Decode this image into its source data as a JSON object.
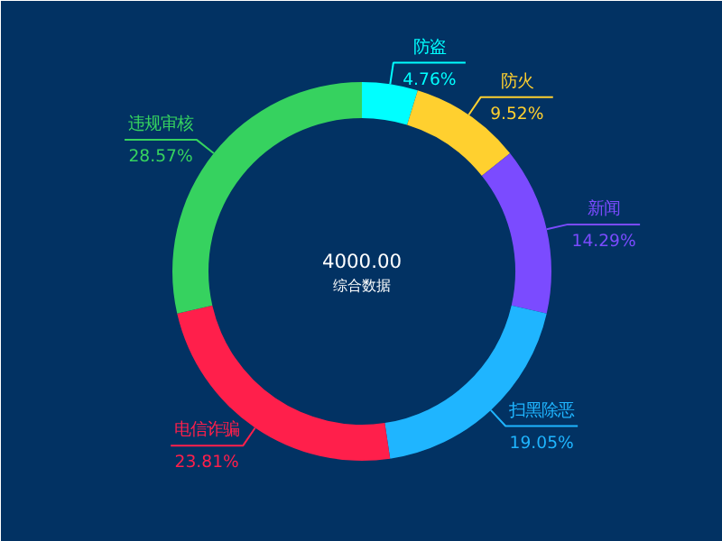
{
  "chart_data": {
    "type": "donut",
    "categories": [
      "防盗",
      "防火",
      "新闻",
      "扫黑除恶",
      "电信诈骗",
      "违规审核"
    ],
    "values": [
      4.76,
      9.52,
      14.29,
      19.05,
      23.81,
      28.57
    ],
    "value_labels": [
      "4.76%",
      "9.52%",
      "14.29%",
      "19.05%",
      "23.81%",
      "28.57%"
    ],
    "colors": [
      "#00ffff",
      "#ffd02f",
      "#7b4bff",
      "#1fb5ff",
      "#ff1f4b",
      "#36d25f"
    ],
    "annotations": [
      "4000.00",
      "综合数据"
    ]
  }
}
